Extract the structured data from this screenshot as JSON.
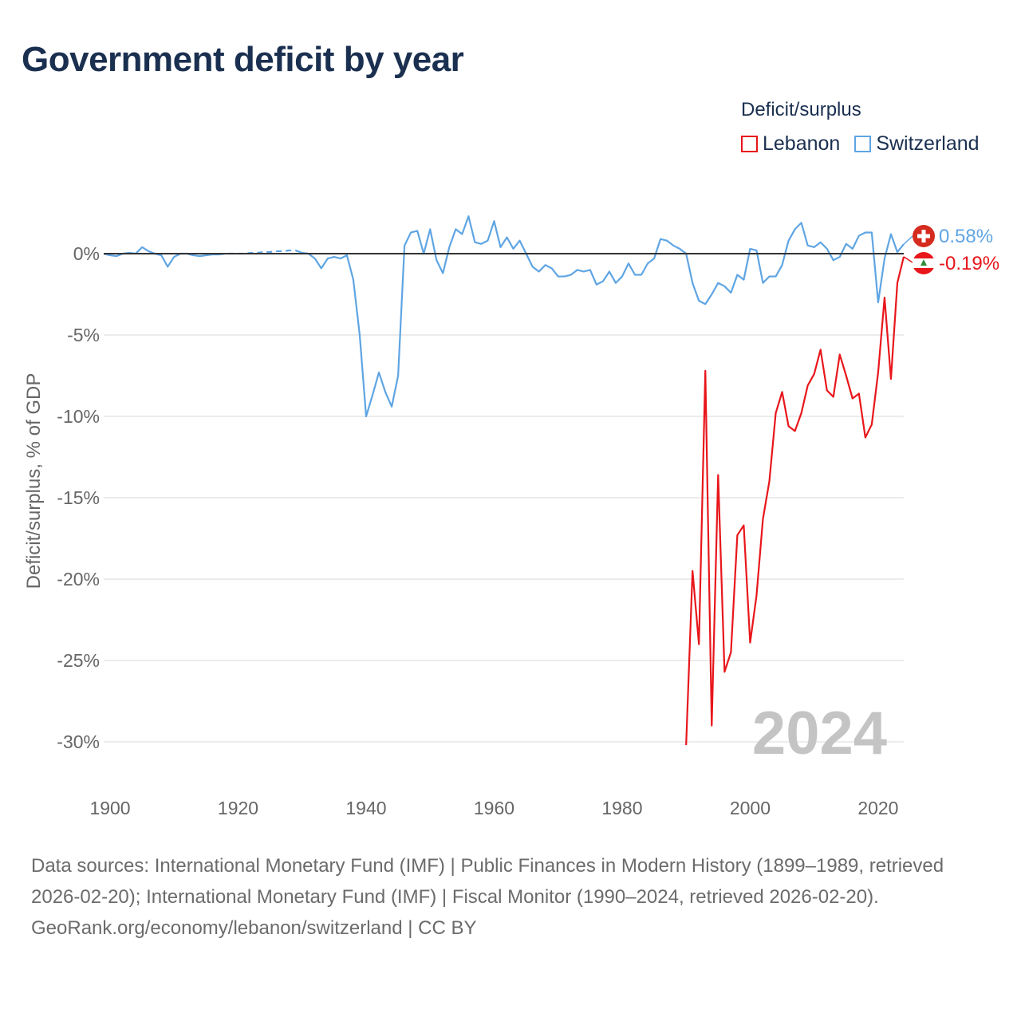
{
  "title": "Government deficit by year",
  "legend": {
    "title": "Deficit/surplus",
    "items": [
      {
        "name": "Lebanon",
        "color": "#e8161b"
      },
      {
        "name": "Switzerland",
        "color": "#5fa5e3"
      }
    ]
  },
  "footer": {
    "sources": "Data sources: International Monetary Fund (IMF) | Public Finances in Modern History (1899–1989, retrieved 2026-02-20); International Monetary Fund (IMF) | Fiscal Monitor (1990–2024, retrieved 2026-02-20).",
    "credit": "GeoRank.org/economy/lebanon/switzerland | CC BY"
  },
  "chart_data": {
    "type": "line",
    "title": "Government deficit by year",
    "xlabel": "",
    "ylabel": "Deficit/surplus, % of GDP",
    "xlim": [
      1899,
      2024
    ],
    "ylim": [
      -32,
      2.5
    ],
    "x_ticks": [
      1900,
      1920,
      1940,
      1960,
      1980,
      2000,
      2020
    ],
    "y_ticks": [
      0,
      -5,
      -10,
      -15,
      -20,
      -25,
      -30
    ],
    "y_tick_labels": [
      "0%",
      "-5%",
      "-10%",
      "-15%",
      "-20%",
      "-25%",
      "-30%"
    ],
    "year_watermark": "2024",
    "series": [
      {
        "name": "Switzerland",
        "color": "#5fa5e3",
        "end_label": "0.58%",
        "gap": {
          "from": 1917,
          "to": 1929
        },
        "points": [
          [
            1899,
            0.0
          ],
          [
            1900,
            -0.1
          ],
          [
            1901,
            -0.15
          ],
          [
            1902,
            0.0
          ],
          [
            1903,
            0.05
          ],
          [
            1904,
            0.0
          ],
          [
            1905,
            0.4
          ],
          [
            1906,
            0.15
          ],
          [
            1907,
            0.0
          ],
          [
            1908,
            -0.1
          ],
          [
            1909,
            -0.8
          ],
          [
            1910,
            -0.2
          ],
          [
            1911,
            0.0
          ],
          [
            1912,
            0.0
          ],
          [
            1913,
            -0.1
          ],
          [
            1914,
            -0.15
          ],
          [
            1915,
            -0.1
          ],
          [
            1916,
            -0.05
          ],
          [
            1917,
            -0.05
          ],
          [
            1918,
            0.0
          ],
          [
            1919,
            0.0
          ],
          [
            1920,
            0.0
          ],
          [
            1921,
            0.0
          ],
          [
            1922,
            0.05
          ],
          [
            1923,
            0.05
          ],
          [
            1924,
            0.1
          ],
          [
            1925,
            0.1
          ],
          [
            1926,
            0.15
          ],
          [
            1927,
            0.15
          ],
          [
            1928,
            0.2
          ],
          [
            1929,
            0.2
          ],
          [
            1930,
            0.05
          ],
          [
            1931,
            0.0
          ],
          [
            1932,
            -0.3
          ],
          [
            1933,
            -0.9
          ],
          [
            1934,
            -0.3
          ],
          [
            1935,
            -0.2
          ],
          [
            1936,
            -0.3
          ],
          [
            1937,
            -0.1
          ],
          [
            1938,
            -1.6
          ],
          [
            1939,
            -5.0
          ],
          [
            1940,
            -10.0
          ],
          [
            1941,
            -8.7
          ],
          [
            1942,
            -7.3
          ],
          [
            1943,
            -8.5
          ],
          [
            1944,
            -9.4
          ],
          [
            1945,
            -7.5
          ],
          [
            1946,
            0.5
          ],
          [
            1947,
            1.3
          ],
          [
            1948,
            1.4
          ],
          [
            1949,
            0.0
          ],
          [
            1950,
            1.5
          ],
          [
            1951,
            -0.4
          ],
          [
            1952,
            -1.2
          ],
          [
            1953,
            0.4
          ],
          [
            1954,
            1.5
          ],
          [
            1955,
            1.2
          ],
          [
            1956,
            2.3
          ],
          [
            1957,
            0.7
          ],
          [
            1958,
            0.6
          ],
          [
            1959,
            0.8
          ],
          [
            1960,
            2.0
          ],
          [
            1961,
            0.4
          ],
          [
            1962,
            1.0
          ],
          [
            1963,
            0.3
          ],
          [
            1964,
            0.8
          ],
          [
            1965,
            0.0
          ],
          [
            1966,
            -0.8
          ],
          [
            1967,
            -1.1
          ],
          [
            1968,
            -0.7
          ],
          [
            1969,
            -0.9
          ],
          [
            1970,
            -1.4
          ],
          [
            1971,
            -1.4
          ],
          [
            1972,
            -1.3
          ],
          [
            1973,
            -1.0
          ],
          [
            1974,
            -1.1
          ],
          [
            1975,
            -1.0
          ],
          [
            1976,
            -1.9
          ],
          [
            1977,
            -1.7
          ],
          [
            1978,
            -1.1
          ],
          [
            1979,
            -1.8
          ],
          [
            1980,
            -1.4
          ],
          [
            1981,
            -0.6
          ],
          [
            1982,
            -1.3
          ],
          [
            1983,
            -1.3
          ],
          [
            1984,
            -0.6
          ],
          [
            1985,
            -0.3
          ],
          [
            1986,
            0.9
          ],
          [
            1987,
            0.8
          ],
          [
            1988,
            0.5
          ],
          [
            1989,
            0.3
          ],
          [
            1990,
            0.0
          ],
          [
            1991,
            -1.8
          ],
          [
            1992,
            -2.9
          ],
          [
            1993,
            -3.1
          ],
          [
            1994,
            -2.5
          ],
          [
            1995,
            -1.8
          ],
          [
            1996,
            -2.0
          ],
          [
            1997,
            -2.4
          ],
          [
            1998,
            -1.3
          ],
          [
            1999,
            -1.6
          ],
          [
            2000,
            0.3
          ],
          [
            2001,
            0.2
          ],
          [
            2002,
            -1.8
          ],
          [
            2003,
            -1.4
          ],
          [
            2004,
            -1.4
          ],
          [
            2005,
            -0.7
          ],
          [
            2006,
            0.8
          ],
          [
            2007,
            1.5
          ],
          [
            2008,
            1.9
          ],
          [
            2009,
            0.5
          ],
          [
            2010,
            0.4
          ],
          [
            2011,
            0.7
          ],
          [
            2012,
            0.3
          ],
          [
            2013,
            -0.4
          ],
          [
            2014,
            -0.2
          ],
          [
            2015,
            0.6
          ],
          [
            2016,
            0.3
          ],
          [
            2017,
            1.1
          ],
          [
            2018,
            1.3
          ],
          [
            2019,
            1.3
          ],
          [
            2020,
            -3.0
          ],
          [
            2021,
            -0.3
          ],
          [
            2022,
            1.2
          ],
          [
            2023,
            0.1
          ],
          [
            2024,
            0.58
          ]
        ]
      },
      {
        "name": "Lebanon",
        "color": "#e8161b",
        "end_label": "-0.19%",
        "points": [
          [
            1990,
            -30.2
          ],
          [
            1991,
            -19.5
          ],
          [
            1992,
            -24.0
          ],
          [
            1993,
            -7.2
          ],
          [
            1994,
            -29.0
          ],
          [
            1995,
            -13.6
          ],
          [
            1996,
            -25.7
          ],
          [
            1997,
            -24.5
          ],
          [
            1998,
            -17.3
          ],
          [
            1999,
            -16.7
          ],
          [
            2000,
            -23.9
          ],
          [
            2001,
            -21.0
          ],
          [
            2002,
            -16.3
          ],
          [
            2003,
            -14.0
          ],
          [
            2004,
            -9.8
          ],
          [
            2005,
            -8.5
          ],
          [
            2006,
            -10.6
          ],
          [
            2007,
            -10.9
          ],
          [
            2008,
            -9.8
          ],
          [
            2009,
            -8.1
          ],
          [
            2010,
            -7.4
          ],
          [
            2011,
            -5.9
          ],
          [
            2012,
            -8.4
          ],
          [
            2013,
            -8.8
          ],
          [
            2014,
            -6.2
          ],
          [
            2015,
            -7.5
          ],
          [
            2016,
            -8.9
          ],
          [
            2017,
            -8.6
          ],
          [
            2018,
            -11.3
          ],
          [
            2019,
            -10.5
          ],
          [
            2020,
            -7.3
          ],
          [
            2021,
            -2.7
          ],
          [
            2022,
            -7.7
          ],
          [
            2023,
            -1.8
          ],
          [
            2024,
            -0.19
          ]
        ]
      }
    ]
  }
}
